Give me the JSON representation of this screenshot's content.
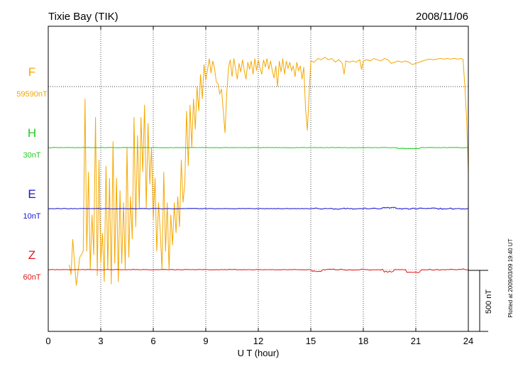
{
  "header": {
    "station": "Tixie Bay (TIK)",
    "date": "2008/11/06"
  },
  "footer_note": "Plotted at 2009/03/09 19:40 UT",
  "chart_data": {
    "type": "line",
    "title": "Tixie Bay (TIK)",
    "date_label": "2008/11/06",
    "xlabel": "U T (hour)",
    "xlim": [
      0,
      24
    ],
    "x_ticks": [
      0,
      3,
      6,
      9,
      12,
      15,
      18,
      21,
      24
    ],
    "grid": true,
    "scale_bar": {
      "label": "500 nT",
      "value_nT": 500
    },
    "series": [
      {
        "name": "F",
        "scale": "59590nT",
        "color": "#f5a800",
        "base_nT": 0,
        "points": [
          [
            1.2,
            -1460
          ],
          [
            1.3,
            -1540
          ],
          [
            1.4,
            -1250
          ],
          [
            1.6,
            -1630
          ],
          [
            1.8,
            -1400
          ],
          [
            2.0,
            -1350
          ],
          [
            2.1,
            -100
          ],
          [
            2.2,
            -1350
          ],
          [
            2.3,
            -700
          ],
          [
            2.4,
            -1500
          ],
          [
            2.5,
            -1050
          ],
          [
            2.6,
            -1380
          ],
          [
            2.7,
            -250
          ],
          [
            2.8,
            -1550
          ],
          [
            2.9,
            -600
          ],
          [
            3.0,
            -1450
          ],
          [
            3.1,
            -1200
          ],
          [
            3.2,
            -1600
          ],
          [
            3.3,
            -650
          ],
          [
            3.4,
            -1500
          ],
          [
            3.5,
            -750
          ],
          [
            3.6,
            -1620
          ],
          [
            3.7,
            -450
          ],
          [
            3.8,
            -1450
          ],
          [
            3.9,
            -750
          ],
          [
            4.0,
            -1600
          ],
          [
            4.1,
            -850
          ],
          [
            4.2,
            -1450
          ],
          [
            4.3,
            -950
          ],
          [
            4.4,
            -1500
          ],
          [
            4.5,
            -500
          ],
          [
            4.6,
            -1400
          ],
          [
            4.7,
            -900
          ],
          [
            4.8,
            -1250
          ],
          [
            4.9,
            -250
          ],
          [
            5.0,
            -1150
          ],
          [
            5.1,
            -400
          ],
          [
            5.2,
            -1000
          ],
          [
            5.3,
            -250
          ],
          [
            5.4,
            -700
          ],
          [
            5.5,
            -150
          ],
          [
            5.6,
            -1000
          ],
          [
            5.7,
            -300
          ],
          [
            5.8,
            -800
          ],
          [
            5.9,
            -500
          ],
          [
            6.0,
            -1100
          ],
          [
            6.1,
            -750
          ],
          [
            6.2,
            -1350
          ],
          [
            6.3,
            -950
          ],
          [
            6.4,
            -1200
          ],
          [
            6.5,
            -1500
          ],
          [
            6.6,
            -700
          ],
          [
            6.7,
            -1350
          ],
          [
            6.8,
            -950
          ],
          [
            6.9,
            -1500
          ],
          [
            7.0,
            -1050
          ],
          [
            7.1,
            -1300
          ],
          [
            7.2,
            -950
          ],
          [
            7.3,
            -1200
          ],
          [
            7.4,
            -900
          ],
          [
            7.5,
            -1150
          ],
          [
            7.6,
            -600
          ],
          [
            7.7,
            -950
          ],
          [
            7.8,
            -800
          ],
          [
            7.9,
            -200
          ],
          [
            8.0,
            -650
          ],
          [
            8.1,
            -150
          ],
          [
            8.2,
            -500
          ],
          [
            8.3,
            -100
          ],
          [
            8.4,
            -350
          ],
          [
            8.5,
            0
          ],
          [
            8.6,
            -200
          ],
          [
            8.7,
            100
          ],
          [
            8.8,
            -100
          ],
          [
            8.9,
            180
          ],
          [
            9.0,
            50
          ],
          [
            9.1,
            140
          ],
          [
            9.2,
            230
          ],
          [
            9.3,
            110
          ],
          [
            9.4,
            210
          ],
          [
            9.5,
            150
          ],
          [
            9.6,
            40
          ],
          [
            9.7,
            20
          ],
          [
            9.8,
            -60
          ],
          [
            9.9,
            -20
          ],
          [
            10.0,
            -200
          ],
          [
            10.1,
            -380
          ],
          [
            10.2,
            -50
          ],
          [
            10.3,
            160
          ],
          [
            10.4,
            220
          ],
          [
            10.5,
            80
          ],
          [
            10.6,
            230
          ],
          [
            10.7,
            150
          ],
          [
            10.8,
            60
          ],
          [
            10.9,
            190
          ],
          [
            11.0,
            120
          ],
          [
            11.1,
            220
          ],
          [
            11.2,
            130
          ],
          [
            11.3,
            60
          ],
          [
            11.4,
            200
          ],
          [
            11.5,
            140
          ],
          [
            11.6,
            210
          ],
          [
            11.7,
            100
          ],
          [
            11.8,
            230
          ],
          [
            11.9,
            130
          ],
          [
            12.0,
            220
          ],
          [
            12.1,
            150
          ],
          [
            12.2,
            100
          ],
          [
            12.3,
            220
          ],
          [
            12.4,
            160
          ],
          [
            12.5,
            230
          ],
          [
            12.6,
            140
          ],
          [
            12.7,
            210
          ],
          [
            12.8,
            130
          ],
          [
            12.9,
            70
          ],
          [
            13.0,
            170
          ],
          [
            13.1,
            0
          ],
          [
            13.2,
            210
          ],
          [
            13.3,
            120
          ],
          [
            13.4,
            230
          ],
          [
            13.5,
            100
          ],
          [
            13.6,
            210
          ],
          [
            13.7,
            150
          ],
          [
            13.8,
            200
          ],
          [
            13.9,
            130
          ],
          [
            14.0,
            170
          ],
          [
            14.1,
            80
          ],
          [
            14.2,
            200
          ],
          [
            14.3,
            130
          ],
          [
            14.4,
            170
          ],
          [
            14.5,
            60
          ],
          [
            14.6,
            160
          ],
          [
            14.7,
            -180
          ],
          [
            14.8,
            -360
          ],
          [
            14.9,
            -80
          ],
          [
            15.0,
            210
          ],
          [
            15.2,
            200
          ],
          [
            15.4,
            230
          ],
          [
            15.6,
            220
          ],
          [
            15.8,
            240
          ],
          [
            16.0,
            220
          ],
          [
            16.2,
            230
          ],
          [
            16.4,
            200
          ],
          [
            16.6,
            220
          ],
          [
            16.8,
            190
          ],
          [
            16.9,
            100
          ],
          [
            17.0,
            210
          ],
          [
            17.2,
            200
          ],
          [
            17.4,
            210
          ],
          [
            17.6,
            200
          ],
          [
            17.8,
            220
          ],
          [
            17.9,
            140
          ],
          [
            18.0,
            210
          ],
          [
            18.2,
            220
          ],
          [
            18.4,
            210
          ],
          [
            18.6,
            230
          ],
          [
            18.8,
            220
          ],
          [
            19.0,
            210
          ],
          [
            19.2,
            230
          ],
          [
            19.4,
            220
          ],
          [
            19.6,
            190
          ],
          [
            19.8,
            200
          ],
          [
            20.0,
            210
          ],
          [
            20.2,
            200
          ],
          [
            20.4,
            210
          ],
          [
            20.6,
            200
          ],
          [
            20.8,
            180
          ],
          [
            21.0,
            190
          ],
          [
            21.2,
            200
          ],
          [
            21.4,
            210
          ],
          [
            21.6,
            220
          ],
          [
            21.8,
            225
          ],
          [
            22.0,
            220
          ],
          [
            22.2,
            225
          ],
          [
            22.4,
            230
          ],
          [
            22.6,
            225
          ],
          [
            22.8,
            230
          ],
          [
            23.0,
            225
          ],
          [
            23.2,
            230
          ],
          [
            23.4,
            225
          ],
          [
            23.6,
            230
          ],
          [
            23.7,
            220
          ],
          [
            23.8,
            0
          ],
          [
            23.9,
            -250
          ],
          [
            24.0,
            -700
          ]
        ]
      },
      {
        "name": "H",
        "scale": "30nT",
        "color": "#22cc22",
        "base_nT": -500
      },
      {
        "name": "E",
        "scale": "10nT",
        "color": "#1515d0",
        "base_nT": -1000
      },
      {
        "name": "Z",
        "scale": "60nT",
        "color": "#e01818",
        "base_nT": -1500
      }
    ]
  }
}
